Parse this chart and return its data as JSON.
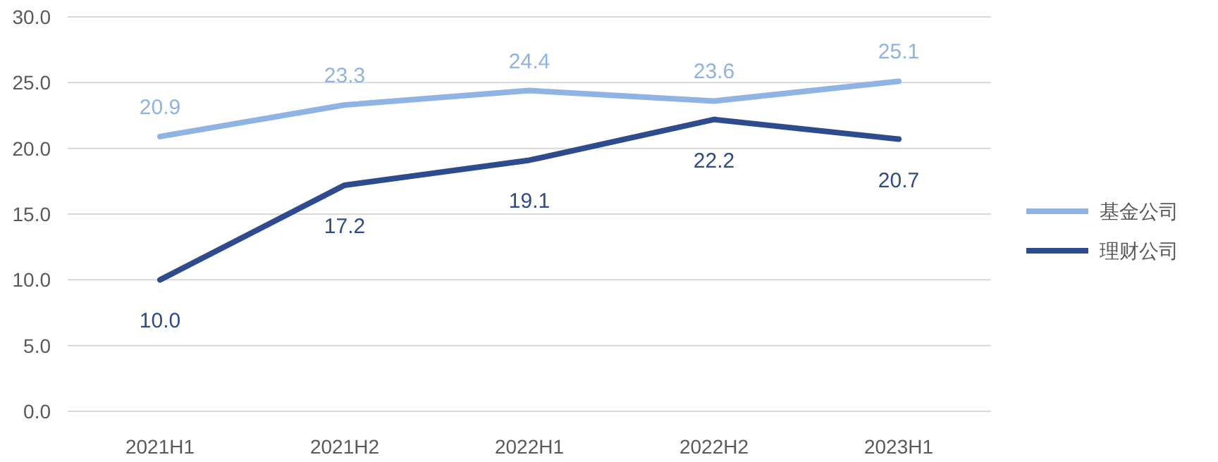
{
  "chart_data": {
    "type": "line",
    "categories": [
      "2021H1",
      "2021H2",
      "2022H1",
      "2022H2",
      "2023H1"
    ],
    "series": [
      {
        "name": "基金公司",
        "color": "#8fb4e3",
        "values": [
          20.9,
          23.3,
          24.4,
          23.6,
          25.1
        ],
        "value_labels": [
          "20.9",
          "23.3",
          "24.4",
          "23.6",
          "25.1"
        ]
      },
      {
        "name": "理财公司",
        "color": "#2f4b8f",
        "values": [
          10.0,
          17.2,
          19.1,
          22.2,
          20.7
        ],
        "value_labels": [
          "10.0",
          "17.2",
          "19.1",
          "22.2",
          "20.7"
        ]
      }
    ],
    "ylim": [
      0,
      30
    ],
    "yticks": [
      {
        "value": 0,
        "label": "0.0"
      },
      {
        "value": 5,
        "label": "5.0"
      },
      {
        "value": 10,
        "label": "10.0"
      },
      {
        "value": 15,
        "label": "15.0"
      },
      {
        "value": 20,
        "label": "20.0"
      },
      {
        "value": 25,
        "label": "25.0"
      },
      {
        "value": 30,
        "label": "30.0"
      }
    ],
    "grid": "y",
    "legend": "right",
    "marker": "none",
    "line_style": "solid"
  }
}
